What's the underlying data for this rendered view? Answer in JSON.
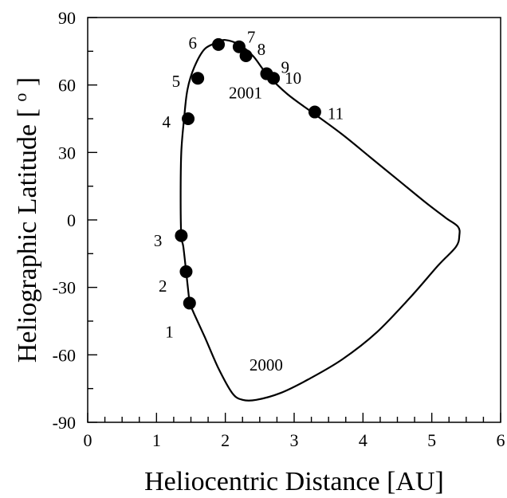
{
  "chart_data": {
    "type": "scatter",
    "xlabel": "Heliocentric Distance [AU]",
    "ylabel_main": "Heliographic Latitude [ ",
    "ylabel_sup": "o",
    "ylabel_end": " ]",
    "xlim": [
      0,
      6
    ],
    "ylim": [
      -90,
      90
    ],
    "xticks": [
      0,
      1,
      2,
      3,
      4,
      5,
      6
    ],
    "yticks": [
      -90,
      -60,
      -30,
      0,
      30,
      60,
      90
    ],
    "xtick_labels": [
      "0",
      "1",
      "2",
      "3",
      "4",
      "5",
      "6"
    ],
    "ytick_labels": [
      "-90",
      "-60",
      "-30",
      "0",
      "30",
      "60",
      "90"
    ],
    "x_minor_step": 0.25,
    "y_minor_step": 15,
    "grid": false,
    "orbit": {
      "x": [
        1.48,
        1.43,
        1.39,
        1.36,
        1.35,
        1.36,
        1.4,
        1.45,
        1.55,
        1.7,
        1.9,
        2.0,
        2.2,
        2.4,
        2.6,
        2.9,
        3.3,
        3.7,
        4.1,
        4.5,
        4.9,
        5.2,
        5.38,
        5.4,
        5.35,
        5.1,
        4.7,
        4.2,
        3.7,
        3.2,
        2.8,
        2.45,
        2.25,
        2.1,
        1.9,
        1.7,
        1.55,
        1.48
      ],
      "y": [
        -37,
        -23,
        -12,
        -7,
        10,
        30,
        45,
        58,
        68,
        76,
        79,
        80,
        78,
        73,
        65,
        56,
        47,
        38,
        28,
        18,
        8,
        1,
        -3,
        -7,
        -12,
        -20,
        -34,
        -50,
        -62,
        -71,
        -77,
        -80,
        -80,
        -77,
        -66,
        -52,
        -42,
        -37
      ]
    },
    "points": [
      {
        "label": "1",
        "x": 1.48,
        "y": -37
      },
      {
        "label": "2",
        "x": 1.43,
        "y": -23
      },
      {
        "label": "3",
        "x": 1.36,
        "y": -7
      },
      {
        "label": "4",
        "x": 1.46,
        "y": 45
      },
      {
        "label": "5",
        "x": 1.6,
        "y": 63
      },
      {
        "label": "6",
        "x": 1.9,
        "y": 78
      },
      {
        "label": "7",
        "x": 2.2,
        "y": 77
      },
      {
        "label": "8",
        "x": 2.3,
        "y": 73
      },
      {
        "label": "9",
        "x": 2.6,
        "y": 65
      },
      {
        "label": "10",
        "x": 2.7,
        "y": 63
      },
      {
        "label": "11",
        "x": 3.3,
        "y": 48
      }
    ],
    "annotations": [
      {
        "text": "2001",
        "x": 2.05,
        "y": 54
      },
      {
        "text": "2000",
        "x": 2.35,
        "y": -67
      }
    ]
  }
}
